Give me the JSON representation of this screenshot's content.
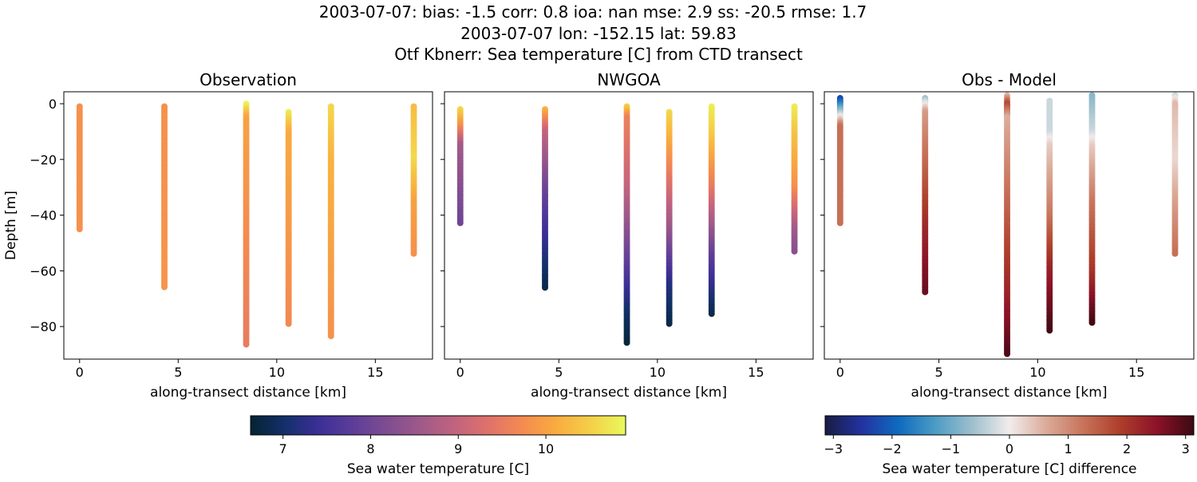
{
  "suptitle": [
    "2003-07-07: bias: -1.5  corr: 0.8  ioa: nan  mse: 2.9  ss: -20.5  rmse: 1.7",
    "2003-07-07 lon: -152.15 lat: 59.83",
    "Otf Kbnerr: Sea temperature [C] from CTD transect"
  ],
  "chart_data": [
    {
      "type": "scatter",
      "title": "Observation",
      "xlabel": "along-transect distance [km]",
      "ylabel": "Depth [m]",
      "xlim": [
        -0.8,
        17.9
      ],
      "ylim": [
        -91.7,
        4.3
      ],
      "xticks": [
        0,
        5,
        10,
        15
      ],
      "yticks": [
        0,
        -20,
        -40,
        -60,
        -80
      ],
      "colormap": "thermal",
      "profiles": [
        {
          "x": 0,
          "points": [
            [
              -1,
              9.8
            ],
            [
              -45,
              9.8
            ]
          ]
        },
        {
          "x": 4.3,
          "points": [
            [
              -1,
              9.8
            ],
            [
              -66,
              9.85
            ]
          ]
        },
        {
          "x": 8.45,
          "points": [
            [
              0,
              10.9
            ],
            [
              -5,
              10.0
            ],
            [
              -87,
              9.5
            ]
          ]
        },
        {
          "x": 10.6,
          "points": [
            [
              -3,
              10.8
            ],
            [
              -10,
              10.1
            ],
            [
              -79,
              9.7
            ]
          ]
        },
        {
          "x": 12.75,
          "points": [
            [
              -1,
              10.6
            ],
            [
              -20,
              10.2
            ],
            [
              -84,
              9.8
            ]
          ]
        },
        {
          "x": 16.95,
          "points": [
            [
              -1,
              10.3
            ],
            [
              -20,
              10.6
            ],
            [
              -35,
              10.0
            ],
            [
              -54,
              9.8
            ]
          ]
        }
      ]
    },
    {
      "type": "scatter",
      "title": "NWGOA",
      "xlabel": "along-transect distance [km]",
      "ylabel": "",
      "xlim": [
        -0.8,
        17.9
      ],
      "ylim": [
        -91.7,
        4.3
      ],
      "xticks": [
        0,
        5,
        10,
        15
      ],
      "yticks": [
        0,
        -20,
        -40,
        -60,
        -80
      ],
      "colormap": "thermal",
      "profiles": [
        {
          "x": 0,
          "points": [
            [
              -2,
              10.6
            ],
            [
              -8,
              9.8
            ],
            [
              -15,
              8.6
            ],
            [
              -43,
              8.0
            ]
          ]
        },
        {
          "x": 4.3,
          "points": [
            [
              -2,
              10.2
            ],
            [
              -10,
              9.0
            ],
            [
              -30,
              8.0
            ],
            [
              -50,
              7.3
            ],
            [
              -66,
              6.8
            ]
          ]
        },
        {
          "x": 8.45,
          "points": [
            [
              -1,
              10.5
            ],
            [
              -5,
              9.6
            ],
            [
              -30,
              9.0
            ],
            [
              -60,
              7.7
            ],
            [
              -75,
              7.0
            ],
            [
              -86,
              6.7
            ]
          ]
        },
        {
          "x": 10.6,
          "points": [
            [
              -3,
              10.6
            ],
            [
              -20,
              9.8
            ],
            [
              -45,
              8.5
            ],
            [
              -65,
              7.2
            ],
            [
              -79,
              6.8
            ]
          ]
        },
        {
          "x": 12.75,
          "points": [
            [
              -1,
              10.8
            ],
            [
              -10,
              10.5
            ],
            [
              -30,
              9.5
            ],
            [
              -55,
              7.8
            ],
            [
              -76,
              6.8
            ]
          ]
        },
        {
          "x": 16.95,
          "points": [
            [
              -1,
              10.8
            ],
            [
              -10,
              10.4
            ],
            [
              -30,
              9.8
            ],
            [
              -45,
              8.6
            ],
            [
              -53,
              8.3
            ]
          ]
        }
      ]
    },
    {
      "type": "scatter",
      "title": "Obs - Model",
      "xlabel": "along-transect distance [km]",
      "ylabel": "",
      "xlim": [
        -0.8,
        17.9
      ],
      "ylim": [
        -91.7,
        4.3
      ],
      "xticks": [
        0,
        5,
        10,
        15
      ],
      "yticks": [
        0,
        -20,
        -40,
        -60,
        -80
      ],
      "colormap": "balance",
      "profiles": [
        {
          "x": 0,
          "points": [
            [
              2,
              -2.3
            ],
            [
              -4,
              -0.2
            ],
            [
              -8,
              1.3
            ],
            [
              -43,
              1.3
            ]
          ]
        },
        {
          "x": 4.3,
          "points": [
            [
              2,
              -0.6
            ],
            [
              -3,
              0.8
            ],
            [
              -25,
              1.5
            ],
            [
              -45,
              2.2
            ],
            [
              -68,
              2.8
            ]
          ]
        },
        {
          "x": 8.45,
          "points": [
            [
              3,
              0.5
            ],
            [
              0,
              1.8
            ],
            [
              -5,
              0.6
            ],
            [
              -40,
              1.5
            ],
            [
              -70,
              2.3
            ],
            [
              -90,
              3.0
            ]
          ]
        },
        {
          "x": 10.6,
          "points": [
            [
              1,
              -0.3
            ],
            [
              -10,
              -0.3
            ],
            [
              -15,
              0.3
            ],
            [
              -40,
              1.2
            ],
            [
              -60,
              2.3
            ],
            [
              -82,
              3.1
            ]
          ]
        },
        {
          "x": 12.75,
          "points": [
            [
              3,
              -0.8
            ],
            [
              -10,
              -0.3
            ],
            [
              -15,
              0.3
            ],
            [
              -35,
              1.2
            ],
            [
              -60,
              2.0
            ],
            [
              -79,
              3.1
            ]
          ]
        },
        {
          "x": 16.95,
          "points": [
            [
              3,
              -0.3
            ],
            [
              0,
              0.5
            ],
            [
              -20,
              0.2
            ],
            [
              -40,
              0.9
            ],
            [
              -54,
              1.3
            ]
          ]
        }
      ]
    }
  ],
  "colorbars": [
    {
      "label": "Sea water temperature [C]",
      "colormap": "thermal",
      "range": [
        6.63,
        10.91
      ],
      "ticks": [
        7,
        8,
        9,
        10
      ]
    },
    {
      "label": "Sea water temperature [C] difference",
      "colormap": "balance",
      "range": [
        -3.14,
        3.14
      ],
      "ticks": [
        -3,
        -2,
        -1,
        0,
        1,
        2,
        3
      ]
    }
  ]
}
